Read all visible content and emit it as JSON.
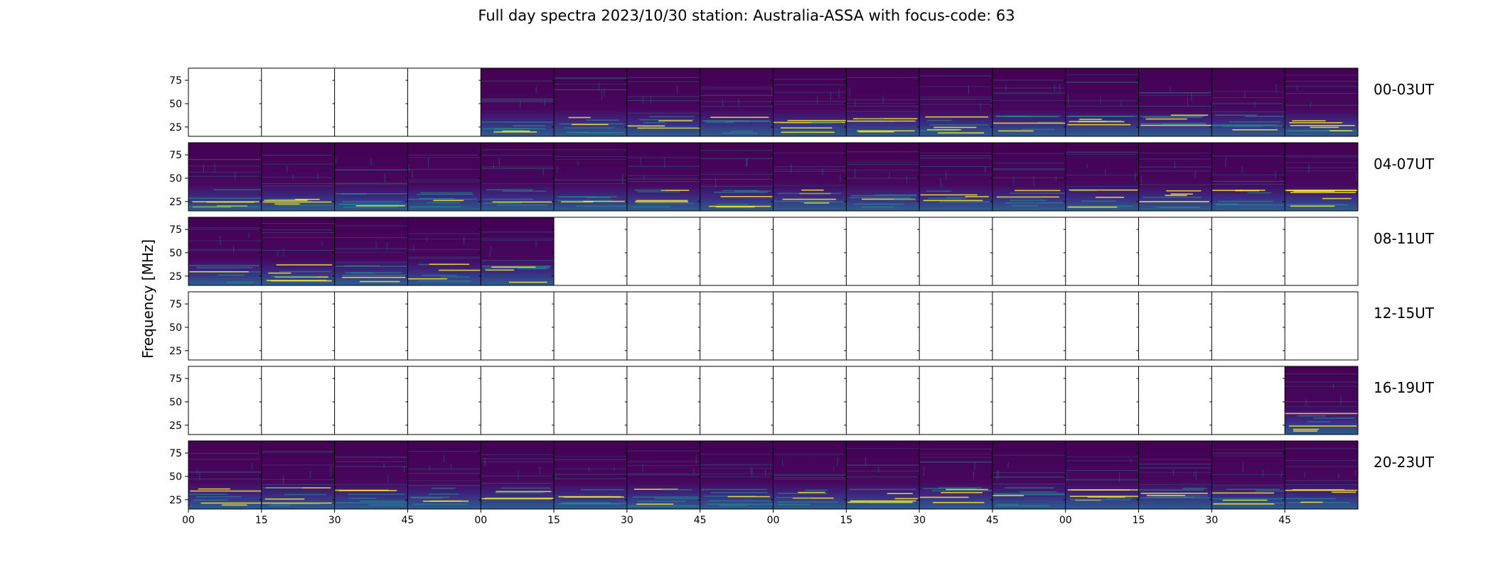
{
  "chart_data": {
    "type": "heatmap",
    "title": "Full day spectra 2023/10/30 station: Australia-ASSA with focus-code: 63",
    "ylabel": "Frequency [MHz]",
    "xlabel": "",
    "y_ticks": [
      "75",
      "50",
      "25"
    ],
    "ylim_mhz": [
      15,
      88
    ],
    "x_ticks": [
      "00",
      "15",
      "30",
      "45",
      "00",
      "15",
      "30",
      "45",
      "00",
      "15",
      "30",
      "45",
      "00",
      "15",
      "30",
      "45"
    ],
    "colormap": "viridis",
    "panel_minutes": 15,
    "rows": [
      {
        "label": "00-03UT",
        "data_present": [
          0,
          0,
          0,
          0,
          1,
          1,
          1,
          1,
          1,
          1,
          1,
          1,
          1,
          1,
          1,
          1
        ]
      },
      {
        "label": "04-07UT",
        "data_present": [
          1,
          1,
          1,
          1,
          1,
          1,
          1,
          1,
          1,
          1,
          1,
          1,
          1,
          1,
          1,
          1
        ]
      },
      {
        "label": "08-11UT",
        "data_present": [
          1,
          1,
          1,
          1,
          1,
          0,
          0,
          0,
          0,
          0,
          0,
          0,
          0,
          0,
          0,
          0
        ]
      },
      {
        "label": "12-15UT",
        "data_present": [
          0,
          0,
          0,
          0,
          0,
          0,
          0,
          0,
          0,
          0,
          0,
          0,
          0,
          0,
          0,
          0
        ]
      },
      {
        "label": "16-19UT",
        "data_present": [
          0,
          0,
          0,
          0,
          0,
          0,
          0,
          0,
          0,
          0,
          0,
          0,
          0,
          0,
          0,
          1
        ]
      },
      {
        "label": "20-23UT",
        "data_present": [
          1,
          1,
          1,
          1,
          1,
          1,
          1,
          1,
          1,
          1,
          1,
          1,
          1,
          1,
          1,
          1
        ]
      }
    ],
    "colors": {
      "background": "#44055a",
      "low": "#440154",
      "mid": "#21918c",
      "high": "#fde725"
    }
  }
}
